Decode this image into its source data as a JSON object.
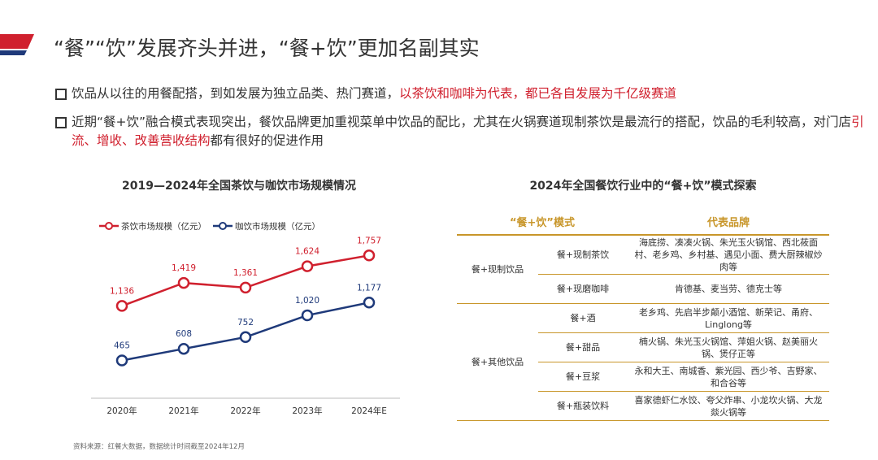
{
  "header": {
    "title": "“餐”“饮”发展齐头并进，“餐+饮”更加名副其实"
  },
  "bullets": [
    [
      "饮品从以往的用餐配搭，到如发展为独立品类、热门赛道，",
      "以茶饮和咖啡为代表，都已各自发展为千亿级赛道",
      ""
    ],
    [
      "近期“餐+饮”融合模式表现突出，餐饮品牌更加重视菜单中饮品的配比，尤其在火锅赛道现制茶饮是最流行的搭配，饮品的毛利较高，对门店",
      "引流、增收、改善营收结构",
      "都有很好的促进作用"
    ]
  ],
  "chart_data": {
    "type": "line",
    "title": "2019—2024年全国茶饮与咖饮市场规模情况",
    "categories": [
      "2020年",
      "2021年",
      "2022年",
      "2023年",
      "2024年E"
    ],
    "series": [
      {
        "name": "茶饮市场规模（亿元）",
        "color": "#d0202e",
        "values": [
          1136,
          1419,
          1361,
          1624,
          1757
        ],
        "value_labels": [
          "1,136",
          "1,419",
          "1,361",
          "1,624",
          "1,757"
        ]
      },
      {
        "name": "咖饮市场规模（亿元）",
        "color": "#1f3a7a",
        "values": [
          465,
          608,
          752,
          1020,
          1177
        ],
        "value_labels": [
          "465",
          "608",
          "752",
          "1,020",
          "1,177"
        ]
      }
    ],
    "ylim": [
      0,
      2000
    ],
    "grid": false
  },
  "table": {
    "title": "2024年全国餐饮行业中的“餐+饮”模式探索",
    "header": [
      "“餐+饮”模式",
      "代表品牌"
    ],
    "groups": [
      {
        "name": "餐+现制饮品",
        "rows": [
          [
            "餐+现制茶饮",
            "海底捞、凑凑火锅、朱光玉火锅馆、西北莜面村、老乡鸡、乡村基、遇见小面、费大厨辣椒炒肉等"
          ],
          [
            "餐+现磨咖啡",
            "肯德基、麦当劳、德克士等"
          ]
        ]
      },
      {
        "name": "餐+其他饮品",
        "rows": [
          [
            "餐+酒",
            "老乡鸡、先启半步颠小酒馆、新荣记、甬府、Linglong等"
          ],
          [
            "餐+甜品",
            "楠火锅、朱光玉火锅馆、萍姐火锅、赵美丽火锅、煲仔正等"
          ],
          [
            "餐+豆浆",
            "永和大王、南城香、紫光园、西少爷、吉野家、和合谷等"
          ],
          [
            "餐+瓶装饮料",
            "喜家德虾仁水饺、夸父炸串、小龙坎火锅、大龙燚火锅等"
          ]
        ]
      }
    ]
  },
  "source": "资料来源：红餐大数据，数据统计时间截至2024年12月"
}
